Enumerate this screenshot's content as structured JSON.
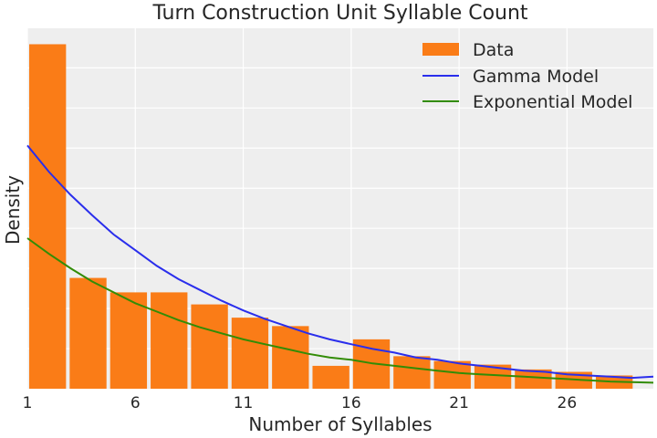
{
  "chart_data": {
    "type": "bar",
    "title": "Turn Construction Unit Syllable Count",
    "xlabel": "Number of Syllables",
    "ylabel": "Density",
    "xlim": [
      1,
      30
    ],
    "ylim": [
      0,
      0.3
    ],
    "x_ticks": [
      "1",
      "6",
      "11",
      "16",
      "21",
      "26"
    ],
    "y_ticks_shown": false,
    "grid": true,
    "legend_placement": "top-right",
    "bin_width": 1.875,
    "bars": {
      "name": "Data",
      "bin_starts": [
        1,
        2.875,
        4.75,
        6.625,
        8.5,
        10.375,
        12.25,
        14.125,
        16,
        17.875,
        19.75,
        21.625,
        23.5,
        25.375,
        27.25
      ],
      "values": [
        0.286,
        0.092,
        0.08,
        0.08,
        0.07,
        0.059,
        0.052,
        0.019,
        0.041,
        0.027,
        0.023,
        0.02,
        0.016,
        0.014,
        0.011
      ],
      "color": "#fa7c17"
    },
    "series": [
      {
        "name": "Gamma Model",
        "color": "#2a2eec",
        "x": [
          1,
          2,
          3,
          4,
          5,
          6,
          7,
          8,
          9,
          10,
          11,
          12,
          13,
          14,
          15,
          16,
          17,
          18,
          19,
          20,
          21,
          22,
          23,
          24,
          25,
          26,
          27,
          28,
          29,
          30
        ],
        "values": [
          0.202,
          0.18,
          0.161,
          0.144,
          0.128,
          0.115,
          0.102,
          0.091,
          0.082,
          0.073,
          0.065,
          0.058,
          0.052,
          0.046,
          0.041,
          0.037,
          0.033,
          0.03,
          0.026,
          0.024,
          0.021,
          0.019,
          0.017,
          0.015,
          0.014,
          0.012,
          0.011,
          0.01,
          0.009,
          0.01
        ]
      },
      {
        "name": "Exponential Model",
        "color": "#328c06",
        "x": [
          1,
          2,
          3,
          4,
          5,
          6,
          7,
          8,
          9,
          10,
          11,
          12,
          13,
          14,
          15,
          16,
          17,
          18,
          19,
          20,
          21,
          22,
          23,
          24,
          25,
          26,
          27,
          28,
          29,
          30
        ],
        "values": [
          0.125,
          0.112,
          0.1,
          0.089,
          0.08,
          0.071,
          0.064,
          0.057,
          0.051,
          0.046,
          0.041,
          0.037,
          0.033,
          0.029,
          0.026,
          0.024,
          0.021,
          0.019,
          0.017,
          0.015,
          0.013,
          0.012,
          0.011,
          0.01,
          0.009,
          0.008,
          0.007,
          0.006,
          0.0055,
          0.005
        ]
      }
    ]
  }
}
